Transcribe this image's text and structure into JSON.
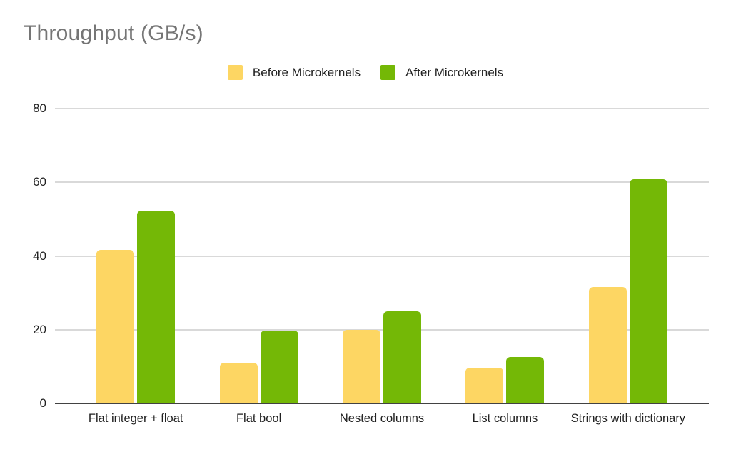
{
  "chart_data": {
    "type": "bar",
    "title": "Throughput (GB/s)",
    "categories": [
      "Flat integer + float",
      "Flat bool",
      "Nested columns",
      "List columns",
      "Strings with dictionary"
    ],
    "series": [
      {
        "name": "Before Microkernels",
        "color": "#FDD663",
        "values": [
          41.7,
          11.0,
          20.0,
          9.6,
          31.5
        ]
      },
      {
        "name": "After Microkernels",
        "color": "#74B806",
        "values": [
          52.3,
          19.8,
          25.0,
          12.5,
          60.8
        ]
      }
    ],
    "xlabel": "",
    "ylabel": "",
    "ylim": [
      0,
      80
    ],
    "yticks": [
      0,
      20,
      40,
      60,
      80
    ],
    "grid": true,
    "legend_position": "top"
  }
}
